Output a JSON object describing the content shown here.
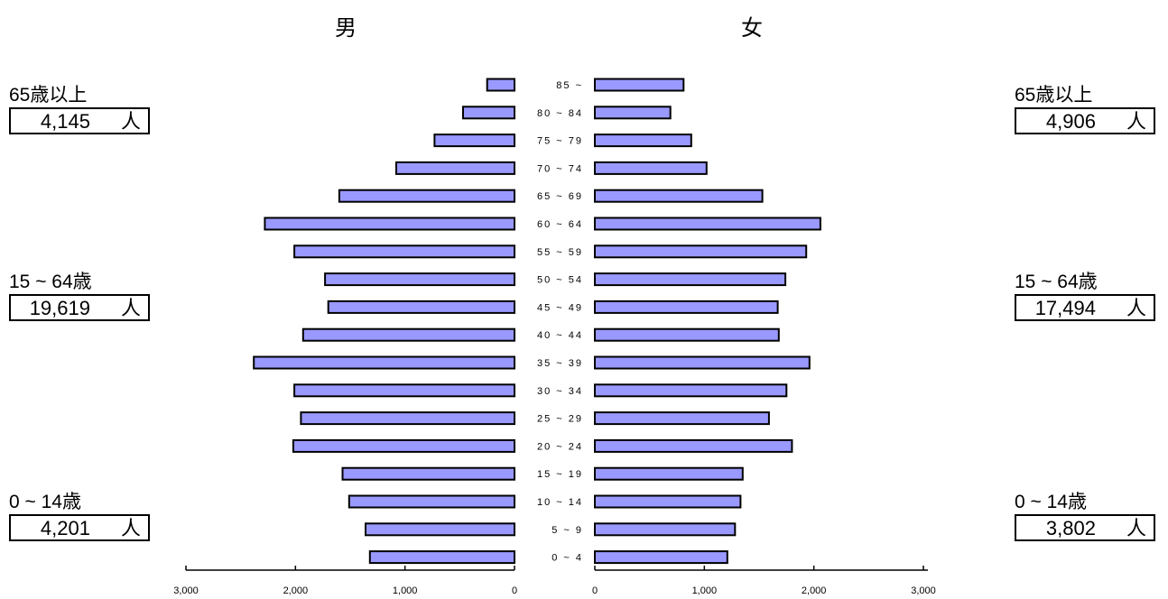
{
  "headers": {
    "male": "男",
    "female": "女"
  },
  "summary": {
    "male": [
      {
        "label": "65歳以上",
        "value": "4,145",
        "unit": "人"
      },
      {
        "label": "15 ~ 64歳",
        "value": "19,619",
        "unit": "人"
      },
      {
        "label": "0 ~ 14歳",
        "value": "4,201",
        "unit": "人"
      }
    ],
    "female": [
      {
        "label": "65歳以上",
        "value": "4,906",
        "unit": "人"
      },
      {
        "label": "15 ~ 64歳",
        "value": "17,494",
        "unit": "人"
      },
      {
        "label": "0 ~ 14歳",
        "value": "3,802",
        "unit": "人"
      }
    ]
  },
  "chart_data": {
    "type": "bar",
    "subtype": "population-pyramid",
    "bar_color": "#9999ff",
    "categories": [
      "85 ~",
      "80 ~ 84",
      "75 ~ 79",
      "70 ~ 74",
      "65 ~ 69",
      "60 ~ 64",
      "55 ~ 59",
      "50 ~ 54",
      "45 ~ 49",
      "40 ~ 44",
      "35 ~ 39",
      "30 ~ 34",
      "25 ~ 29",
      "20 ~ 24",
      "15 ~ 19",
      "10 ~ 14",
      "5 ~ 9",
      "0 ~ 4"
    ],
    "series": [
      {
        "name": "男",
        "values": [
          250,
          470,
          730,
          1080,
          1600,
          2280,
          2010,
          1730,
          1700,
          1930,
          2380,
          2010,
          1950,
          2020,
          1570,
          1510,
          1360,
          1320
        ]
      },
      {
        "name": "女",
        "values": [
          810,
          690,
          880,
          1020,
          1530,
          2060,
          1930,
          1740,
          1670,
          1680,
          1960,
          1750,
          1590,
          1800,
          1350,
          1330,
          1280,
          1210
        ]
      }
    ],
    "xlim": [
      0,
      3000
    ],
    "male_ticks": [
      "3,000",
      "2,000",
      "1,000",
      "0"
    ],
    "female_ticks": [
      "0",
      "1,000",
      "2,000",
      "3,000"
    ],
    "tick_values": [
      3000,
      2000,
      1000,
      0
    ]
  }
}
